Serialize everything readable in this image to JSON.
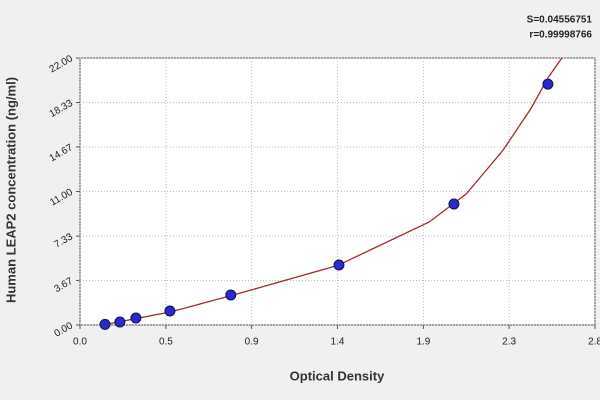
{
  "chart_data": {
    "type": "scatter",
    "x_label": "Optical Density",
    "y_label": "Human LEAP2 concentration (ng/ml)",
    "annotations": [
      "S=0.04556751",
      "r=0.99998766"
    ],
    "x": [
      0.136,
      0.217,
      0.304,
      0.489,
      0.82,
      1.408,
      2.033,
      2.544
    ],
    "values": [
      0.05,
      0.25,
      0.58,
      1.15,
      2.47,
      4.94,
      9.97,
      19.85
    ],
    "color": "#2a2ac8",
    "curve": {
      "x": [
        0.14,
        0.5,
        0.9,
        1.4,
        1.9,
        2.1,
        2.3,
        2.45,
        2.55,
        2.62
      ],
      "values": [
        0.05,
        1.1,
        2.75,
        4.9,
        8.5,
        10.8,
        14.4,
        17.8,
        20.5,
        22
      ],
      "color": "#a52a2a"
    },
    "xlim": [
      0,
      2.8
    ],
    "xticks": [
      {
        "value": 0,
        "label": "0.0"
      },
      {
        "value": 0.467,
        "label": "0.5"
      },
      {
        "value": 0.933,
        "label": "0.9"
      },
      1.4,
      {
        "value": 1.867,
        "label": "1.9"
      },
      {
        "value": 2.333,
        "label": "2.3"
      },
      2.8
    ],
    "ylim": [
      0,
      22
    ],
    "yticks": [
      {
        "value": 0,
        "label": "0.00"
      },
      3.67,
      7.33,
      {
        "value": 11,
        "label": "11.00"
      },
      14.67,
      18.33,
      {
        "value": 22,
        "label": "22.00"
      }
    ],
    "grid": true
  }
}
